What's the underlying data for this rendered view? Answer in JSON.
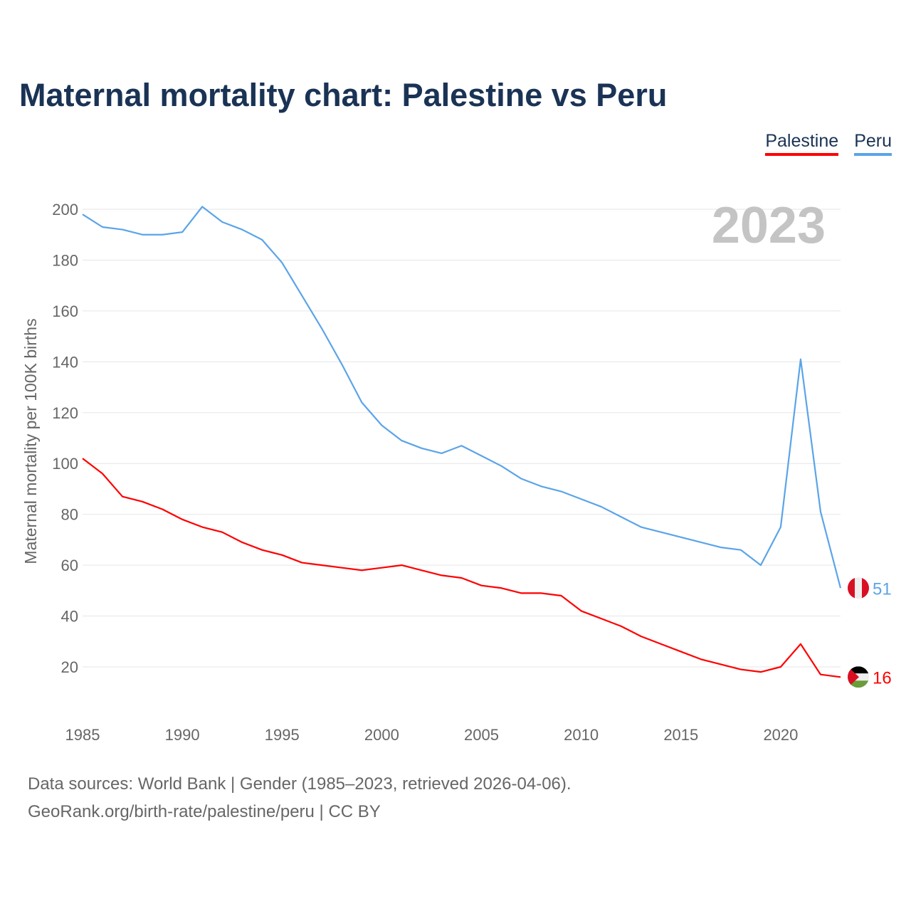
{
  "title": "Maternal mortality chart: Palestine vs Peru",
  "sources_line1": "Data sources: World Bank | Gender (1985–2023, retrieved 2026-04-06).",
  "sources_line2": "GeoRank.org/birth-rate/palestine/peru | CC BY",
  "chart_data": {
    "type": "line",
    "title": "Maternal mortality chart: Palestine vs Peru",
    "ylabel": "Maternal mortality per 100K births",
    "xlabel": "",
    "year_label": "2023",
    "xlim": [
      1985,
      2023
    ],
    "ylim": [
      0,
      210
    ],
    "xticks": [
      1985,
      1990,
      1995,
      2000,
      2005,
      2010,
      2015,
      2020
    ],
    "yticks": [
      20,
      40,
      60,
      80,
      100,
      120,
      140,
      160,
      180,
      200
    ],
    "grid": true,
    "legend_position": "top-right",
    "x": [
      1985,
      1986,
      1987,
      1988,
      1989,
      1990,
      1991,
      1992,
      1993,
      1994,
      1995,
      1996,
      1997,
      1998,
      1999,
      2000,
      2001,
      2002,
      2003,
      2004,
      2005,
      2006,
      2007,
      2008,
      2009,
      2010,
      2011,
      2012,
      2013,
      2014,
      2015,
      2016,
      2017,
      2018,
      2019,
      2020,
      2021,
      2022,
      2023
    ],
    "series": [
      {
        "name": "Palestine",
        "color": "#ff0000",
        "end_label": "16",
        "values": [
          102,
          96,
          87,
          85,
          82,
          78,
          75,
          73,
          69,
          66,
          64,
          61,
          60,
          59,
          58,
          59,
          60,
          58,
          56,
          55,
          52,
          51,
          49,
          49,
          48,
          42,
          39,
          36,
          32,
          29,
          26,
          23,
          21,
          19,
          18,
          20,
          29,
          17,
          16
        ]
      },
      {
        "name": "Peru",
        "color": "#5ba4e8",
        "end_label": "51",
        "values": [
          198,
          193,
          192,
          190,
          190,
          191,
          201,
          195,
          192,
          188,
          179,
          166,
          153,
          139,
          124,
          115,
          109,
          106,
          104,
          107,
          103,
          99,
          94,
          91,
          89,
          86,
          83,
          79,
          75,
          73,
          71,
          69,
          67,
          66,
          60,
          75,
          141,
          81,
          51
        ]
      }
    ]
  }
}
